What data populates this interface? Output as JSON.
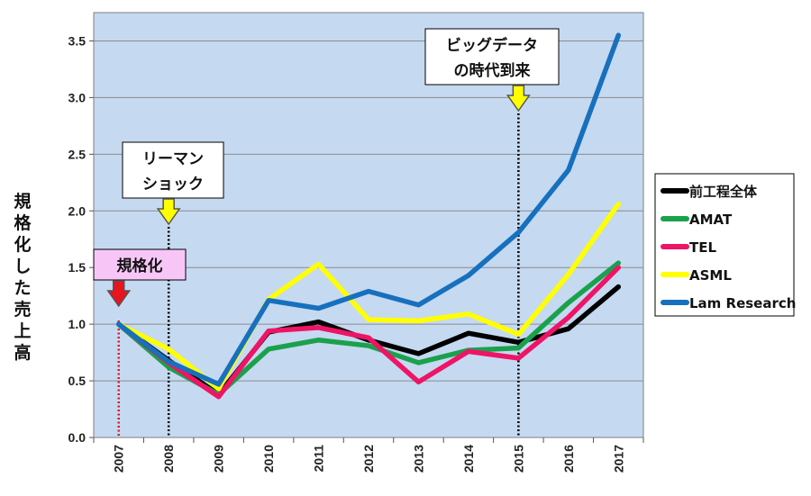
{
  "chart_data": {
    "type": "line",
    "ylabel": "規格化した売上高",
    "categories": [
      "2007",
      "2008",
      "2009",
      "2010",
      "2011",
      "2012",
      "2013",
      "2014",
      "2015",
      "2016",
      "2017"
    ],
    "ylim": [
      0,
      3.75
    ],
    "yticks": [
      "0.0",
      "0.5",
      "1.0",
      "1.5",
      "2.0",
      "2.5",
      "3.0",
      "3.5"
    ],
    "grid": true,
    "legend_position": "right",
    "series": [
      {
        "name": "前工程全体",
        "color": "#000000",
        "values": [
          1.0,
          0.68,
          0.38,
          0.93,
          1.02,
          0.86,
          0.74,
          0.92,
          0.84,
          0.96,
          1.33
        ]
      },
      {
        "name": "AMAT",
        "color": "#1aa14c",
        "values": [
          1.0,
          0.62,
          0.38,
          0.78,
          0.86,
          0.81,
          0.66,
          0.77,
          0.79,
          1.19,
          1.54
        ]
      },
      {
        "name": "TEL",
        "color": "#ee1466",
        "values": [
          1.0,
          0.66,
          0.36,
          0.94,
          0.97,
          0.88,
          0.49,
          0.76,
          0.7,
          1.06,
          1.5
        ]
      },
      {
        "name": "ASML",
        "color": "#ffff00",
        "values": [
          1.0,
          0.78,
          0.43,
          1.22,
          1.53,
          1.04,
          1.03,
          1.09,
          0.91,
          1.44,
          2.06
        ]
      },
      {
        "name": "Lam Research",
        "color": "#1770bd",
        "values": [
          1.0,
          0.67,
          0.47,
          1.21,
          1.14,
          1.29,
          1.17,
          1.43,
          1.81,
          2.36,
          3.55
        ]
      }
    ],
    "annotations": [
      {
        "x": "2007",
        "lines": [
          "規格化"
        ],
        "bg": "#f7c6f7",
        "arrow": "#e8141e",
        "line_color": "#e8141e"
      },
      {
        "x": "2008",
        "lines": [
          "リーマン",
          "ショック"
        ],
        "bg": "#ffffff",
        "arrow": "#ffff00",
        "line_color": "#000000"
      },
      {
        "x": "2015",
        "lines": [
          "ビッグデータ",
          "の時代到来"
        ],
        "bg": "#ffffff",
        "arrow": "#ffff00",
        "line_color": "#000000"
      }
    ]
  }
}
